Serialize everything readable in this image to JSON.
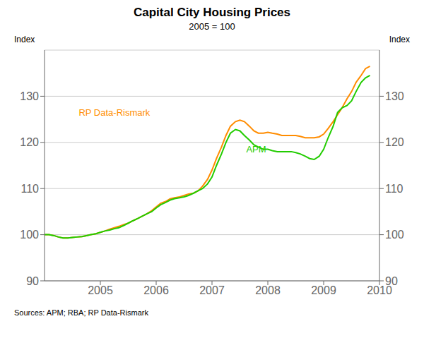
{
  "chart_data": {
    "type": "line",
    "title": "Capital City Housing Prices",
    "subtitle": "2005 = 100",
    "ylabel": "Index",
    "y2label": "Index",
    "source": "Sources: APM; RBA; RP Data-Rismark",
    "xlim": [
      2004.0,
      2010.0
    ],
    "xticks": [
      2005,
      2006,
      2007,
      2008,
      2009,
      2010
    ],
    "ylim": [
      90,
      140
    ],
    "yticks": [
      90,
      100,
      110,
      120,
      130
    ],
    "y2lim": [
      90,
      140
    ],
    "y2ticks": [
      90,
      100,
      110,
      120,
      130
    ],
    "grid": true,
    "x": [
      2004.0,
      2004.08,
      2004.17,
      2004.25,
      2004.33,
      2004.42,
      2004.5,
      2004.58,
      2004.67,
      2004.75,
      2004.83,
      2004.92,
      2005.0,
      2005.08,
      2005.17,
      2005.25,
      2005.33,
      2005.42,
      2005.5,
      2005.58,
      2005.67,
      2005.75,
      2005.83,
      2005.92,
      2006.0,
      2006.08,
      2006.17,
      2006.25,
      2006.33,
      2006.42,
      2006.5,
      2006.58,
      2006.67,
      2006.75,
      2006.83,
      2006.92,
      2007.0,
      2007.08,
      2007.17,
      2007.25,
      2007.33,
      2007.42,
      2007.5,
      2007.58,
      2007.67,
      2007.75,
      2007.83,
      2007.92,
      2008.0,
      2008.08,
      2008.17,
      2008.25,
      2008.33,
      2008.42,
      2008.5,
      2008.58,
      2008.67,
      2008.75,
      2008.83,
      2008.92,
      2009.0,
      2009.08,
      2009.17,
      2009.25,
      2009.33,
      2009.42,
      2009.5,
      2009.58,
      2009.67,
      2009.75,
      2009.83
    ],
    "series": [
      {
        "name": "RP Data-Rismark",
        "color": "#FF8C00",
        "values": [
          100.0,
          100.0,
          99.8,
          99.5,
          99.3,
          99.3,
          99.4,
          99.5,
          99.6,
          99.8,
          100.0,
          100.2,
          100.5,
          100.8,
          101.2,
          101.5,
          101.8,
          102.2,
          102.5,
          103.0,
          103.5,
          104.0,
          104.5,
          105.2,
          106.0,
          106.8,
          107.2,
          107.8,
          108.0,
          108.2,
          108.5,
          108.8,
          109.0,
          109.5,
          110.5,
          112.0,
          114.0,
          116.5,
          119.0,
          121.5,
          123.5,
          124.5,
          124.8,
          124.5,
          123.5,
          122.5,
          122.0,
          122.0,
          122.2,
          122.0,
          121.8,
          121.5,
          121.5,
          121.5,
          121.5,
          121.3,
          121.0,
          121.0,
          121.0,
          121.2,
          121.8,
          123.0,
          124.5,
          126.0,
          127.5,
          129.5,
          131.0,
          133.0,
          134.5,
          136.0,
          136.5
        ]
      },
      {
        "name": "APM",
        "color": "#22CC00",
        "values": [
          100.0,
          100.0,
          99.8,
          99.5,
          99.3,
          99.3,
          99.4,
          99.5,
          99.6,
          99.8,
          100.0,
          100.2,
          100.5,
          100.8,
          101.0,
          101.3,
          101.5,
          102.0,
          102.5,
          103.0,
          103.5,
          104.0,
          104.5,
          105.0,
          105.8,
          106.5,
          107.0,
          107.5,
          107.8,
          108.0,
          108.2,
          108.5,
          109.0,
          109.5,
          110.0,
          111.0,
          112.5,
          115.0,
          117.5,
          120.0,
          122.0,
          122.8,
          122.5,
          121.5,
          120.5,
          119.5,
          119.0,
          118.5,
          118.5,
          118.2,
          118.0,
          118.0,
          118.0,
          118.0,
          117.8,
          117.5,
          117.0,
          116.5,
          116.3,
          117.0,
          118.5,
          121.0,
          123.5,
          126.5,
          127.5,
          128.0,
          129.0,
          131.0,
          133.0,
          134.0,
          134.5
        ]
      }
    ],
    "annotations": [
      {
        "text": "RP Data-Rismark",
        "x": 2004.55,
        "y": 126.5,
        "color": "#FF8C00"
      },
      {
        "text": "APM",
        "x": 2007.55,
        "y": 118.5,
        "color": "#22CC00"
      }
    ]
  }
}
